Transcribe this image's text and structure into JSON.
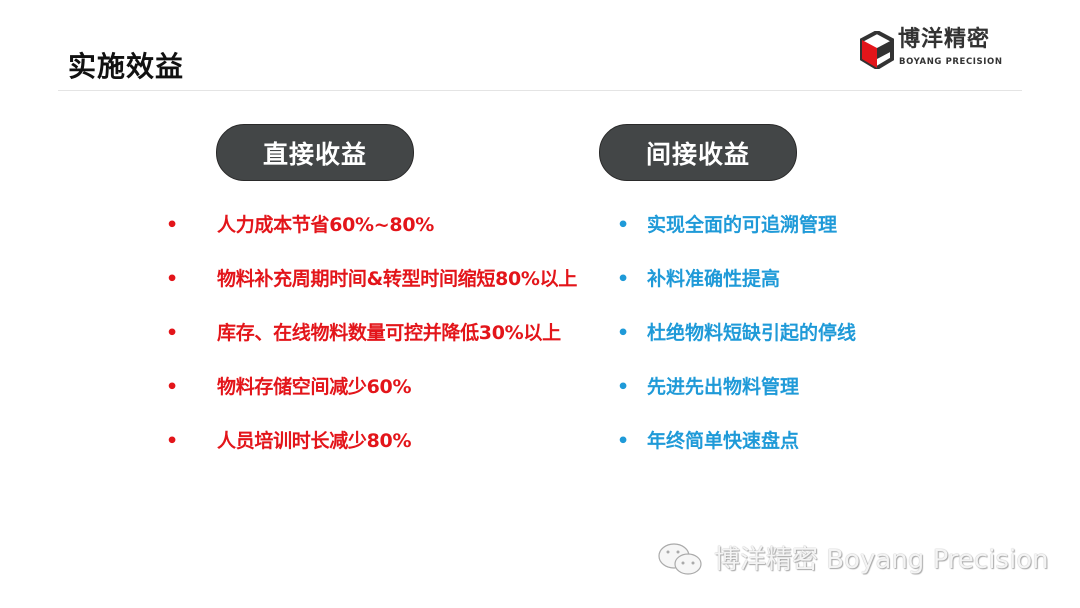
{
  "title": "实施效益",
  "logo": {
    "cn": "博洋精密",
    "en": "BOYANG PRECISION",
    "colors": {
      "red": "#e3151a",
      "dark": "#333333"
    }
  },
  "direct": {
    "label": "直接收益",
    "items": [
      "人力成本节省60%~80%",
      "物料补充周期时间&转型时间缩短80%以上",
      "库存、在线物料数量可控并降低30%以上",
      "物料存储空间减少60%",
      "人员培训时长减少80%"
    ]
  },
  "indirect": {
    "label": "间接收益",
    "items": [
      "实现全面的可追溯管理",
      "补料准确性提高",
      "杜绝物料短缺引起的停线",
      "先进先出物料管理",
      "年终简单快速盘点"
    ]
  },
  "watermark": "博洋精密 Boyang Precision",
  "bullet": "•",
  "colors": {
    "direct": "#e3151a",
    "indirect": "#1f9ad8",
    "pill": "#434647"
  }
}
